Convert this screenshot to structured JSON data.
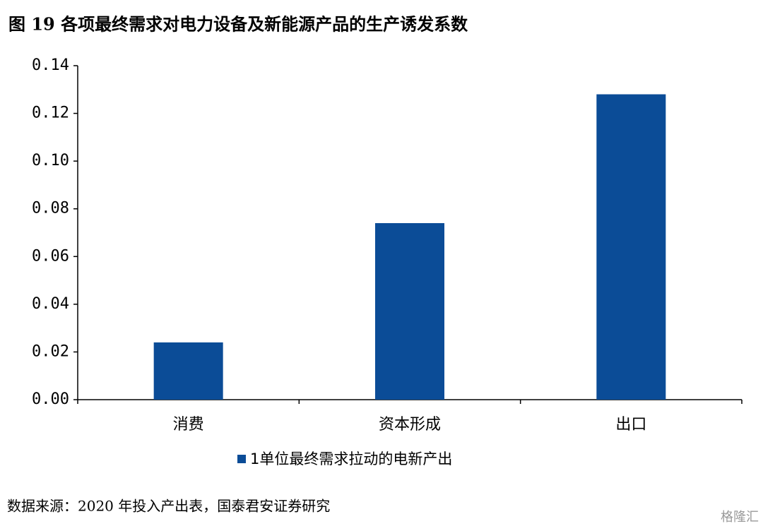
{
  "chart_data": {
    "type": "bar",
    "title": "图 19 各项最终需求对电力设备及新能源产品的生产诱发系数",
    "categories": [
      "消费",
      "资本形成",
      "出口"
    ],
    "series": [
      {
        "name": "1单位最终需求拉动的电新产出",
        "color": "#0b4c97",
        "values": [
          0.024,
          0.074,
          0.128
        ]
      }
    ],
    "ylim": [
      0,
      0.14
    ],
    "yticks": [
      {
        "value": 0,
        "label": "0.00"
      },
      0.02,
      0.04,
      0.06,
      0.08,
      {
        "value": 0.1,
        "label": "0.10"
      },
      0.12,
      0.14
    ],
    "source": "数据来源：2020 年投入产出表，国泰君安证券研究",
    "watermark": "格隆汇"
  }
}
